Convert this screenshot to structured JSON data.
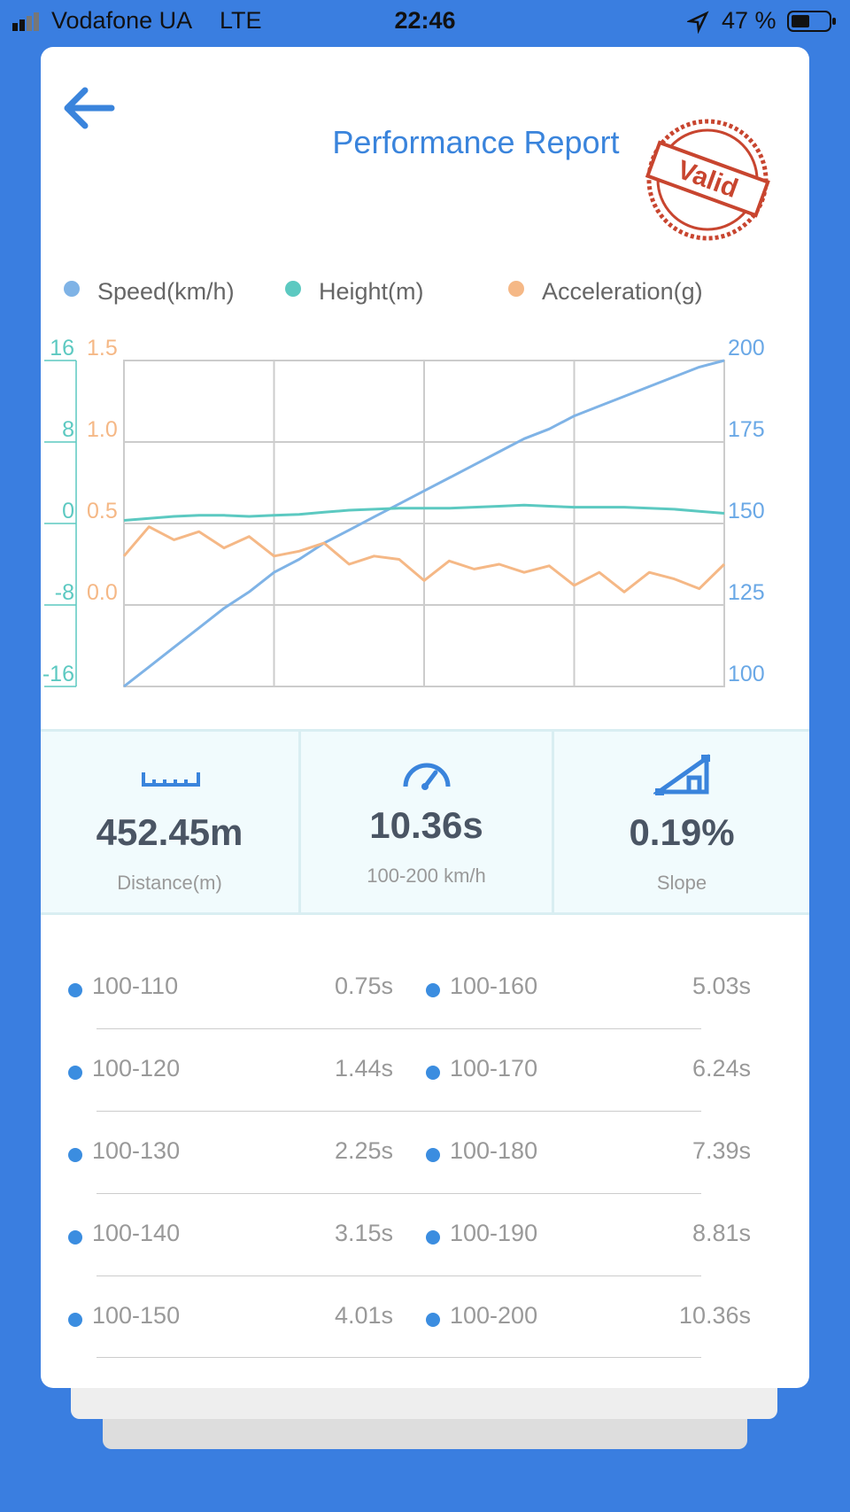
{
  "status_bar": {
    "carrier": "Vodafone UA",
    "network": "LTE",
    "time": "22:46",
    "battery": "47 %"
  },
  "header": {
    "title": "Performance Report",
    "stamp": "Valid"
  },
  "chart_data": {
    "type": "line",
    "categories": [
      null,
      null,
      null,
      null,
      null,
      null,
      null,
      null,
      null,
      null,
      null,
      null,
      null,
      null,
      null,
      null,
      null,
      null,
      null,
      null,
      null,
      null,
      null,
      null,
      null
    ],
    "series": [
      {
        "name": "Speed(km/h)",
        "color": "#7fb3e6",
        "axis": "y2",
        "values": [
          100,
          106,
          112,
          118,
          124,
          129,
          135,
          139,
          144,
          148,
          152,
          156,
          160,
          164,
          168,
          172,
          176,
          179,
          183,
          186,
          189,
          192,
          195,
          198,
          200
        ]
      },
      {
        "name": "Height(m)",
        "color": "#5cc9c1",
        "axis": "y",
        "values": [
          0.3,
          0.5,
          0.7,
          0.8,
          0.8,
          0.7,
          0.8,
          0.9,
          1.1,
          1.3,
          1.4,
          1.5,
          1.5,
          1.5,
          1.6,
          1.7,
          1.8,
          1.7,
          1.6,
          1.6,
          1.6,
          1.5,
          1.4,
          1.2,
          1.0
        ]
      },
      {
        "name": "Acceleration(g)",
        "color": "#f5b886",
        "axis": "y3",
        "values": [
          0.3,
          0.48,
          0.4,
          0.45,
          0.35,
          0.42,
          0.3,
          0.33,
          0.38,
          0.25,
          0.3,
          0.28,
          0.15,
          0.27,
          0.22,
          0.25,
          0.2,
          0.24,
          0.12,
          0.2,
          0.08,
          0.2,
          0.16,
          0.1,
          0.25
        ]
      }
    ],
    "ylim": [
      -16,
      16
    ],
    "yticks": [
      -16,
      -8,
      0,
      8,
      16
    ],
    "y3lim": [
      -0.5,
      1.5
    ],
    "y3ticks": [
      {
        "value": 0,
        "label": "0.0"
      },
      0.5,
      {
        "value": 1,
        "label": "1.0"
      },
      1.5
    ],
    "y2lim": [
      100,
      200
    ],
    "y2ticks": [
      100,
      125,
      150,
      175,
      200
    ],
    "grid": true
  },
  "stats": [
    {
      "value": "452.45m",
      "label": "Distance(m)"
    },
    {
      "value": "10.36s",
      "label": "100-200 km/h"
    },
    {
      "value": "0.19%",
      "label": "Slope"
    }
  ],
  "splits": [
    {
      "range": "100-110",
      "time": "0.75s"
    },
    {
      "range": "100-120",
      "time": "1.44s"
    },
    {
      "range": "100-130",
      "time": "2.25s"
    },
    {
      "range": "100-140",
      "time": "3.15s"
    },
    {
      "range": "100-150",
      "time": "4.01s"
    },
    {
      "range": "100-160",
      "time": "5.03s"
    },
    {
      "range": "100-170",
      "time": "6.24s"
    },
    {
      "range": "100-180",
      "time": "7.39s"
    },
    {
      "range": "100-190",
      "time": "8.81s"
    },
    {
      "range": "100-200",
      "time": "10.36s"
    }
  ]
}
